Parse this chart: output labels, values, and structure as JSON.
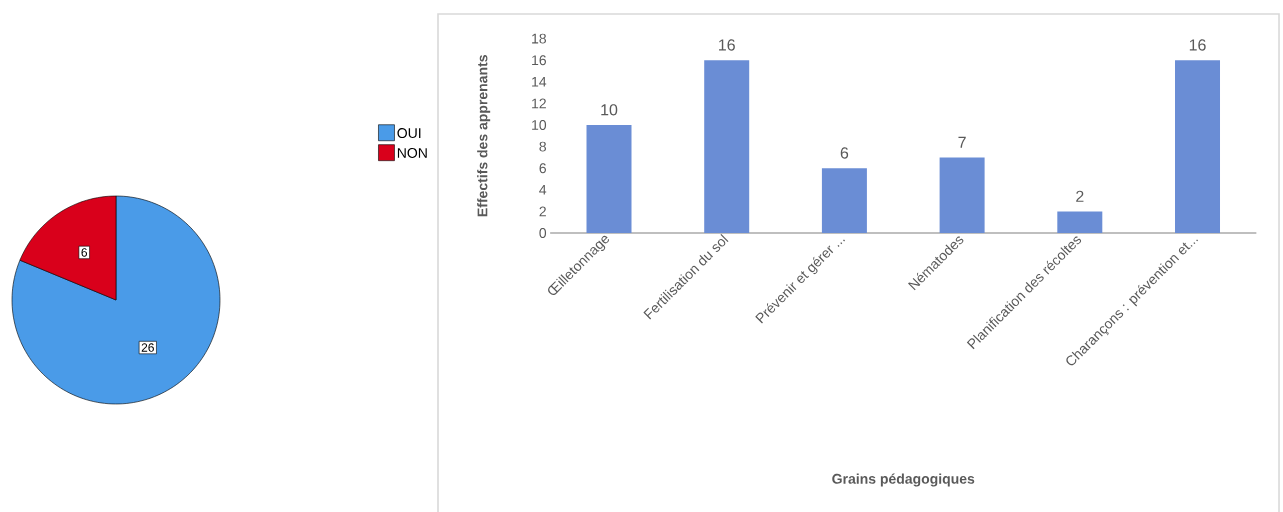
{
  "chart_data": [
    {
      "type": "pie",
      "categories": [
        "OUI",
        "NON"
      ],
      "values": [
        26,
        6
      ],
      "colors": [
        "#4a9be8",
        "#d9001b"
      ],
      "data_labels": true,
      "legend": "top right"
    },
    {
      "type": "bar",
      "categories": [
        "Œilletonnage",
        "Fertilisation du sol",
        "Prévenir et gérer ...",
        "Nématodes",
        "Planification des récoltes",
        "Charançons : prévention et..."
      ],
      "values": [
        10,
        16,
        6,
        7,
        2,
        16
      ],
      "color": "#6a8dd5",
      "xlabel": "Grains pédagogiques",
      "ylabel": "Effectifs des apprenants",
      "ylim": [
        0,
        18
      ],
      "yticks": [
        0,
        2,
        4,
        6,
        8,
        10,
        12,
        14,
        16,
        18
      ],
      "data_labels": true
    }
  ]
}
